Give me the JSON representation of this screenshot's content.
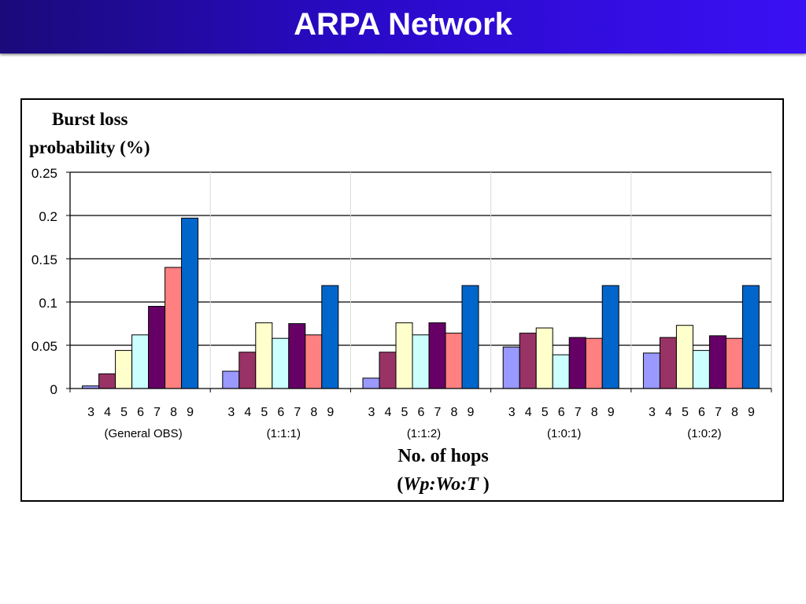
{
  "slide": {
    "title": "ARPA Network"
  },
  "chart_data": {
    "type": "bar",
    "ylabel_line1": "Burst loss",
    "ylabel_line2": "probability (%)",
    "xlabel_line1": "No. of hops",
    "xlabel_line2_open": "(",
    "xlabel_line2_italic": "Wp:Wo:T",
    "xlabel_line2_close": " )",
    "ylim": [
      0,
      0.25
    ],
    "yticks": [
      "0",
      "0.05",
      "0.1",
      "0.15",
      "0.2",
      "0.25"
    ],
    "grid": "horizontal",
    "legend": "none",
    "hop_categories": [
      "3",
      "4",
      "5",
      "6",
      "7",
      "8",
      "9"
    ],
    "series_colors": [
      "#9999ff",
      "#993366",
      "#ffffcc",
      "#ccffff",
      "#660066",
      "#ff8080",
      "#0066cc"
    ],
    "groups": [
      {
        "label": "(General OBS)",
        "values": [
          0.003,
          0.017,
          0.044,
          0.062,
          0.095,
          0.14,
          0.197
        ]
      },
      {
        "label": "(1:1:1)",
        "values": [
          0.02,
          0.042,
          0.076,
          0.058,
          0.075,
          0.062,
          0.119
        ]
      },
      {
        "label": "(1:1:2)",
        "values": [
          0.012,
          0.042,
          0.076,
          0.062,
          0.076,
          0.064,
          0.119
        ]
      },
      {
        "label": "(1:0:1)",
        "values": [
          0.048,
          0.064,
          0.07,
          0.039,
          0.059,
          0.058,
          0.119
        ]
      },
      {
        "label": "(1:0:2)",
        "values": [
          0.041,
          0.059,
          0.073,
          0.044,
          0.061,
          0.058,
          0.119
        ]
      }
    ]
  }
}
